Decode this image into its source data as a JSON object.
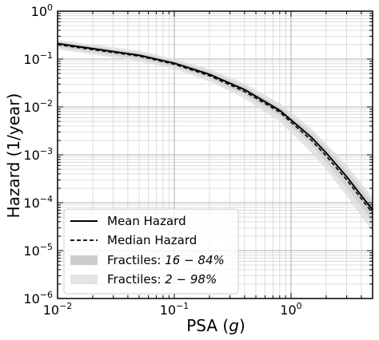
{
  "chart_data": {
    "type": "line",
    "xlabel": "PSA",
    "xlabel_unit": "g",
    "ylabel": "Hazard",
    "ylabel_unit": "1/year",
    "x_scale": "log",
    "y_scale": "log",
    "xlim": [
      0.01,
      5
    ],
    "ylim": [
      1e-06,
      1
    ],
    "grid": true,
    "legend_position": "bottom-left",
    "x_ticks": [
      {
        "value": 0.01,
        "base": "10",
        "exp": "−2"
      },
      {
        "value": 0.1,
        "base": "10",
        "exp": "−1"
      },
      {
        "value": 1,
        "base": "10",
        "exp": "0"
      }
    ],
    "y_ticks": [
      {
        "value": 1e-06,
        "base": "10",
        "exp": "−6"
      },
      {
        "value": 1e-05,
        "base": "10",
        "exp": "−5"
      },
      {
        "value": 0.0001,
        "base": "10",
        "exp": "−4"
      },
      {
        "value": 0.001,
        "base": "10",
        "exp": "−3"
      },
      {
        "value": 0.01,
        "base": "10",
        "exp": "−2"
      },
      {
        "value": 0.1,
        "base": "10",
        "exp": "−1"
      },
      {
        "value": 1,
        "base": "10",
        "exp": "0"
      }
    ],
    "x": [
      0.01,
      0.05,
      0.1,
      0.2,
      0.4,
      0.8,
      1.5,
      2.0,
      3.0,
      5.0
    ],
    "series": [
      {
        "name": "Mean Hazard",
        "style": "solid",
        "color": "#000000",
        "values": [
          0.21,
          0.12,
          0.082,
          0.048,
          0.023,
          0.0085,
          0.0023,
          0.0011,
          0.00035,
          7e-05
        ]
      },
      {
        "name": "Median Hazard",
        "style": "dashed",
        "color": "#000000",
        "values": [
          0.2,
          0.115,
          0.078,
          0.045,
          0.021,
          0.0078,
          0.002,
          0.00095,
          0.0003,
          6e-05
        ]
      }
    ],
    "bands": [
      {
        "name": "Fractiles: 16 − 84%",
        "label_prefix": "Fractiles: ",
        "label_math": "16 − 84%",
        "color": "#cccccc",
        "opacity": 0.7,
        "lower": [
          0.18,
          0.1,
          0.07,
          0.04,
          0.018,
          0.0065,
          0.0016,
          0.0007,
          0.00021,
          4e-05
        ],
        "upper": [
          0.23,
          0.135,
          0.092,
          0.055,
          0.027,
          0.01,
          0.0029,
          0.0014,
          0.00047,
          0.0001
        ]
      },
      {
        "name": "Fractiles: 2 − 98%",
        "label_prefix": "Fractiles: ",
        "label_math": "2 − 98%",
        "color": "#dddddd",
        "opacity": 0.8,
        "lower": [
          0.16,
          0.09,
          0.062,
          0.034,
          0.015,
          0.005,
          0.0011,
          0.0005,
          0.00014,
          2.5e-05
        ],
        "upper": [
          0.25,
          0.15,
          0.1,
          0.062,
          0.031,
          0.012,
          0.0035,
          0.0017,
          0.0006,
          0.00013
        ]
      }
    ]
  }
}
